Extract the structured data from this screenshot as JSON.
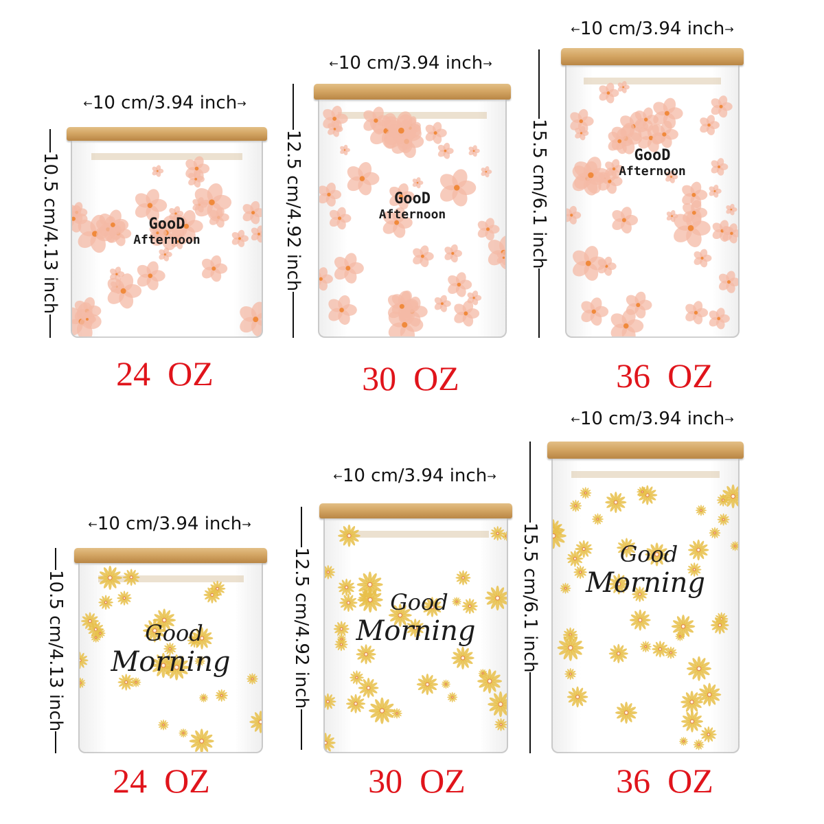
{
  "jars": [
    {
      "series": "afternoon",
      "width_label": "10 cm/3.94 inch",
      "height_label": "10.5 cm/4.13 inch",
      "capacity": "24  OZ",
      "line1": "GooD",
      "line2": "Afternoon"
    },
    {
      "series": "afternoon",
      "width_label": "10 cm/3.94 inch",
      "height_label": "12.5 cm/4.92 inch",
      "capacity": "30  OZ",
      "line1": "GooD",
      "line2": "Afternoon"
    },
    {
      "series": "afternoon",
      "width_label": "10 cm/3.94 inch",
      "height_label": "15.5 cm/6.1 inch",
      "capacity": "36  OZ",
      "line1": "GooD",
      "line2": "Afternoon"
    },
    {
      "series": "morning",
      "width_label": "10 cm/3.94 inch",
      "height_label": "10.5 cm/4.13 inch",
      "capacity": "24  OZ",
      "line1": "Good",
      "line2": "Morning"
    },
    {
      "series": "morning",
      "width_label": "10 cm/3.94 inch",
      "height_label": "12.5 cm/4.92 inch",
      "capacity": "30  OZ",
      "line1": "Good",
      "line2": "Morning"
    },
    {
      "series": "morning",
      "width_label": "10 cm/3.94 inch",
      "height_label": "15.5 cm/6.1 inch",
      "capacity": "36  OZ",
      "line1": "Good",
      "line2": "Morning"
    }
  ],
  "colors": {
    "capacity_text": "#e0141b",
    "pink_flower": "#f4b9a6",
    "daisy": "#e8c04a",
    "bamboo_lid": "#d4a664"
  },
  "icons": {
    "arrow_left": "←",
    "arrow_right": "→"
  }
}
